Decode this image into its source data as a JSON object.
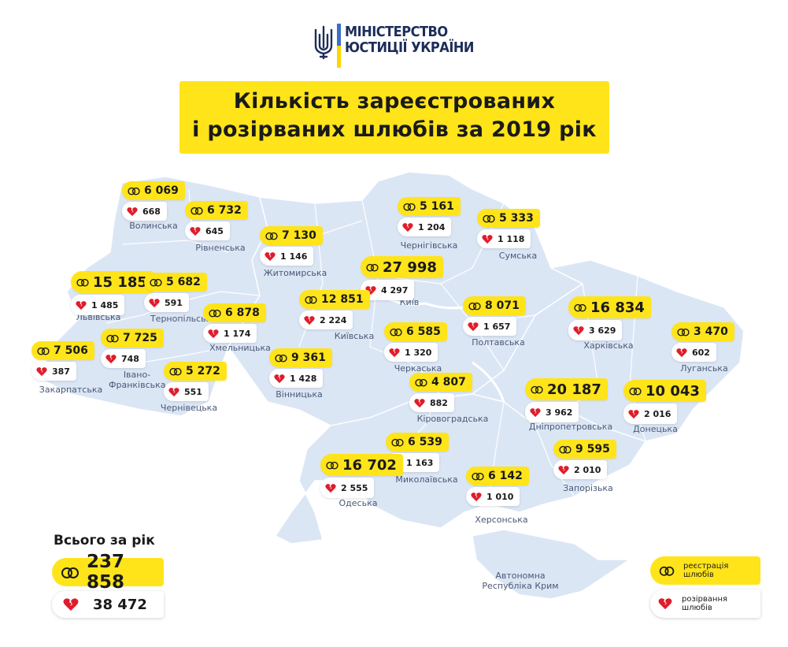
{
  "header": {
    "logo_line1": "МІНІСТЕРСТВО",
    "logo_line2": "ЮСТИЦІЇ УКРАЇНИ",
    "title_line1": "Кількість зареєстрованих",
    "title_line2": "і розірваних шлюбів за 2019 рік"
  },
  "colors": {
    "accent": "#ffe41a",
    "map_fill": "#dbe6f5",
    "border": "#ffffff",
    "heart": "#e01c2a",
    "logo_blue": "#3b6fc5",
    "logo_yellow": "#ffd500"
  },
  "regions": [
    {
      "name": "Волинська",
      "marriages": "6 069",
      "divorces": "668"
    },
    {
      "name": "Рівненська",
      "marriages": "6 732",
      "divorces": "645"
    },
    {
      "name": "Житомирська",
      "marriages": "7 130",
      "divorces": "1 146"
    },
    {
      "name": "Чернігівська",
      "marriages": "5 161",
      "divorces": "1 204"
    },
    {
      "name": "Сумська",
      "marriages": "5 333",
      "divorces": "1 118"
    },
    {
      "name": "Київ",
      "marriages": "27 998",
      "divorces": "4 297"
    },
    {
      "name": "Львівська",
      "marriages": "15 185",
      "divorces": "1 485"
    },
    {
      "name": "Тернопільська",
      "marriages": "5 682",
      "divorces": "591"
    },
    {
      "name": "Хмельницька",
      "marriages": "6 878",
      "divorces": "1 174"
    },
    {
      "name": "Київська",
      "marriages": "12 851",
      "divorces": "2 224"
    },
    {
      "name": "Полтавська",
      "marriages": "8 071",
      "divorces": "1 657"
    },
    {
      "name": "Харківська",
      "marriages": "16 834",
      "divorces": "3 629"
    },
    {
      "name": "Луганська",
      "marriages": "3 470",
      "divorces": "602"
    },
    {
      "name": "Закарпатська",
      "marriages": "7 506",
      "divorces": "387"
    },
    {
      "name": "Івано-Франківська",
      "marriages": "7 725",
      "divorces": "748"
    },
    {
      "name": "Чернівецька",
      "marriages": "5 272",
      "divorces": "551"
    },
    {
      "name": "Вінницька",
      "marriages": "9 361",
      "divorces": "1 428"
    },
    {
      "name": "Черкаська",
      "marriages": "6 585",
      "divorces": "1 320"
    },
    {
      "name": "Кіровоградська",
      "marriages": "4 807",
      "divorces": "882"
    },
    {
      "name": "Дніпропетровська",
      "marriages": "20 187",
      "divorces": "3 962"
    },
    {
      "name": "Донецька",
      "marriages": "10 043",
      "divorces": "2 016"
    },
    {
      "name": "Миколаївська",
      "marriages": "6 539",
      "divorces": "1 163"
    },
    {
      "name": "Одеська",
      "marriages": "16 702",
      "divorces": "2 555"
    },
    {
      "name": "Херсонська",
      "marriages": "6 142",
      "divorces": "1 010"
    },
    {
      "name": "Запорізька",
      "marriages": "9 595",
      "divorces": "2 010"
    }
  ],
  "crimea_label": "Автономна Республіка Крим",
  "totals": {
    "label": "Всього за рік",
    "marriages": "237 858",
    "divorces": "38 472"
  },
  "legend": {
    "marriage_label": "реєстрація шлюбів",
    "divorce_label": "розірвання шлюбів"
  },
  "icons": {
    "marriage": "wedding-rings-icon",
    "divorce": "broken-heart-icon"
  }
}
